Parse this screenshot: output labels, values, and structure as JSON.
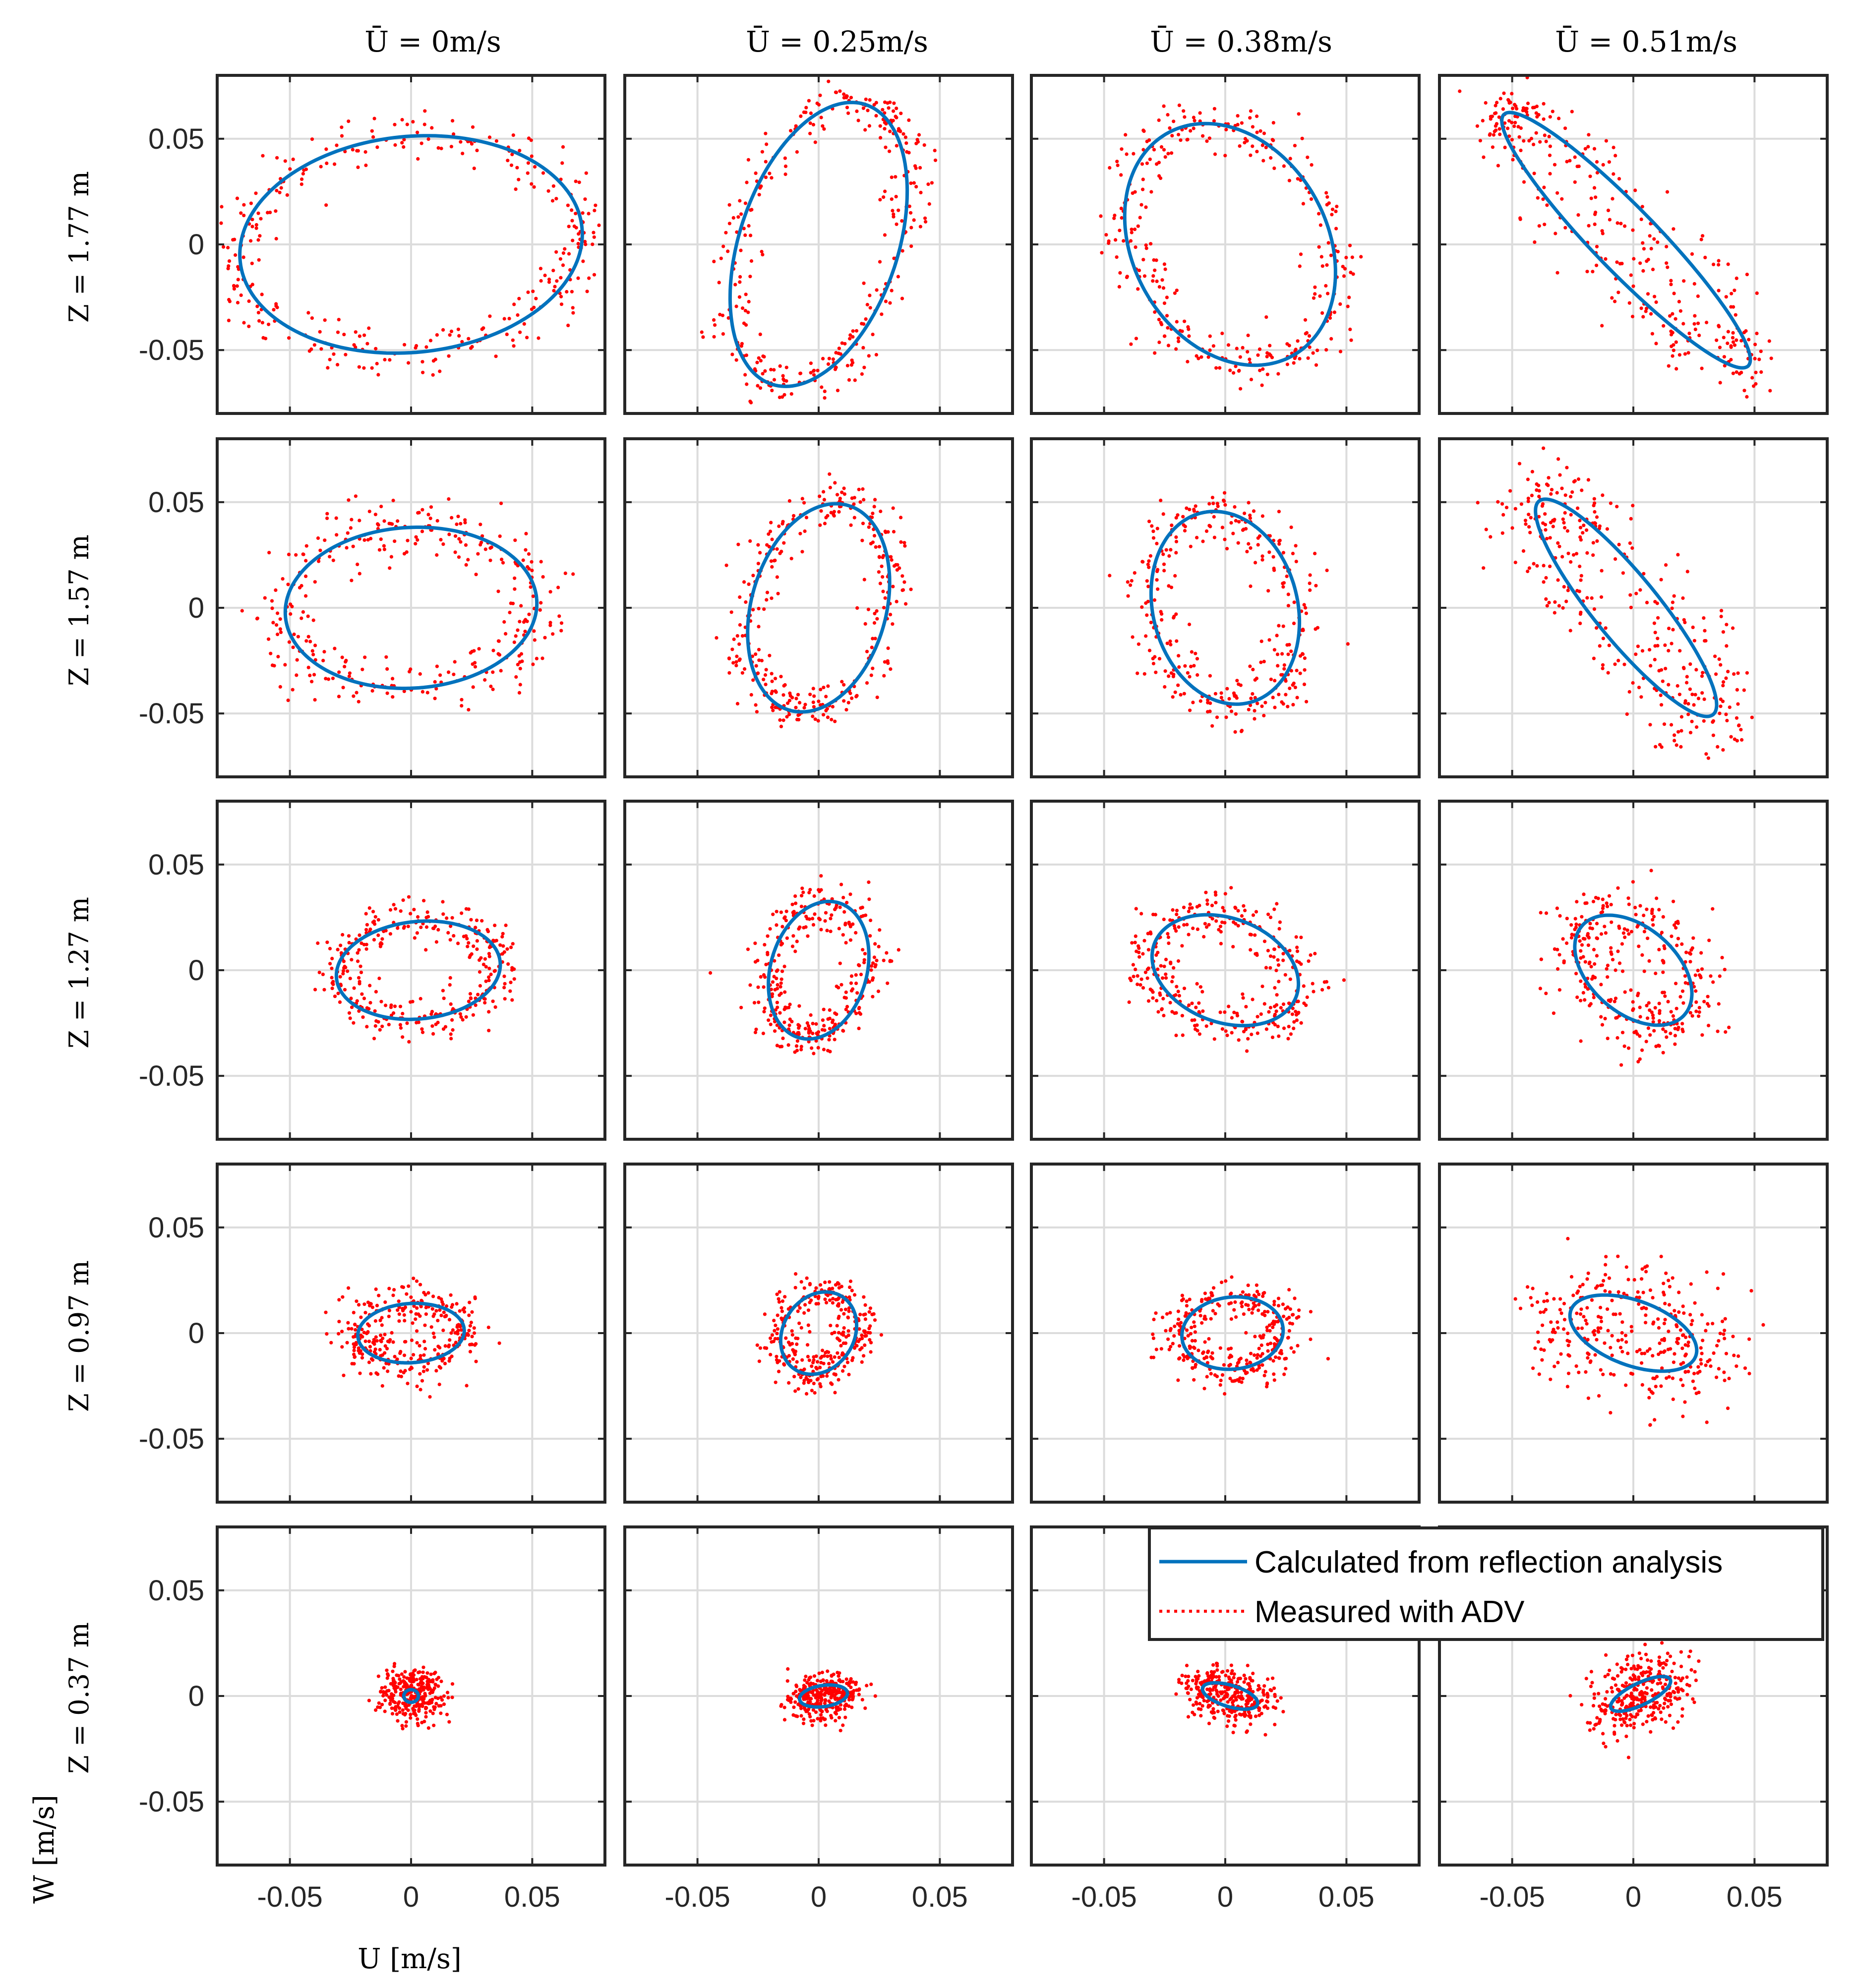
{
  "chart_data": {
    "type": "scatter",
    "title": "",
    "xlabel": "U [m/s]",
    "ylabel": "W [m/s]",
    "xlim": [
      -0.08,
      0.08
    ],
    "ylim": [
      -0.08,
      0.08
    ],
    "xticks": [
      -0.05,
      0,
      0.05
    ],
    "yticks": [
      0.05,
      0,
      -0.05
    ],
    "xtick_labels": [
      "-0.05",
      "0",
      "0.05"
    ],
    "ytick_labels": [
      "0.05",
      "0",
      "-0.05"
    ],
    "grid": true,
    "column_titles": [
      "Ū = 0m/s",
      "Ū = 0.25m/s",
      "Ū = 0.38m/s",
      "Ū = 0.51m/s"
    ],
    "row_labels": [
      "Z = 1.77 m",
      "Z = 1.57 m",
      "Z = 1.27 m",
      "Z = 0.97 m",
      "Z = 0.37 m"
    ],
    "legend": {
      "placement": "top-right of bottom-right panels",
      "entries": [
        {
          "label": "Calculated from reflection analysis",
          "style": "solid",
          "color": "#0072BD"
        },
        {
          "label": "Measured with ADV",
          "style": "dotted",
          "color": "#FF0000"
        }
      ]
    },
    "series_colors": {
      "calculated": "#0072BD",
      "measured": "#FF0000"
    },
    "panels": [
      {
        "row": 0,
        "col": 0,
        "cx": 0.0,
        "cz": 0.0,
        "a": 0.071,
        "b": 0.051,
        "tilt_deg": 8,
        "spread": 0.006
      },
      {
        "row": 0,
        "col": 1,
        "cx": 0.0,
        "cz": 0.0,
        "a": 0.069,
        "b": 0.033,
        "tilt_deg": 75,
        "spread": 0.005
      },
      {
        "row": 0,
        "col": 2,
        "cx": 0.002,
        "cz": 0.0,
        "a": 0.059,
        "b": 0.041,
        "tilt_deg": 110,
        "spread": 0.006
      },
      {
        "row": 0,
        "col": 3,
        "cx": -0.003,
        "cz": 0.002,
        "a": 0.078,
        "b": 0.014,
        "tilt_deg": 130,
        "spread": 0.007
      },
      {
        "row": 1,
        "col": 0,
        "cx": 0.0,
        "cz": 0.0,
        "a": 0.052,
        "b": 0.038,
        "tilt_deg": 5,
        "spread": 0.007
      },
      {
        "row": 1,
        "col": 1,
        "cx": 0.0,
        "cz": 0.0,
        "a": 0.05,
        "b": 0.028,
        "tilt_deg": 78,
        "spread": 0.005
      },
      {
        "row": 1,
        "col": 2,
        "cx": 0.0,
        "cz": 0.0,
        "a": 0.046,
        "b": 0.03,
        "tilt_deg": 100,
        "spread": 0.006
      },
      {
        "row": 1,
        "col": 3,
        "cx": -0.003,
        "cz": 0.0,
        "a": 0.062,
        "b": 0.014,
        "tilt_deg": 125,
        "spread": 0.01
      },
      {
        "row": 2,
        "col": 0,
        "cx": 0.003,
        "cz": 0.0,
        "a": 0.034,
        "b": 0.023,
        "tilt_deg": 8,
        "spread": 0.005
      },
      {
        "row": 2,
        "col": 1,
        "cx": 0.0,
        "cz": 0.0,
        "a": 0.033,
        "b": 0.02,
        "tilt_deg": 78,
        "spread": 0.005
      },
      {
        "row": 2,
        "col": 2,
        "cx": 0.0,
        "cz": 0.0,
        "a": 0.032,
        "b": 0.024,
        "tilt_deg": 150,
        "spread": 0.006
      },
      {
        "row": 2,
        "col": 3,
        "cx": 0.0,
        "cz": 0.0,
        "a": 0.03,
        "b": 0.019,
        "tilt_deg": 130,
        "spread": 0.008
      },
      {
        "row": 3,
        "col": 0,
        "cx": 0.0,
        "cz": 0.0,
        "a": 0.022,
        "b": 0.014,
        "tilt_deg": 5,
        "spread": 0.006
      },
      {
        "row": 3,
        "col": 1,
        "cx": 0.0,
        "cz": 0.0,
        "a": 0.02,
        "b": 0.015,
        "tilt_deg": 70,
        "spread": 0.005
      },
      {
        "row": 3,
        "col": 2,
        "cx": 0.003,
        "cz": 0.0,
        "a": 0.021,
        "b": 0.017,
        "tilt_deg": 10,
        "spread": 0.005
      },
      {
        "row": 3,
        "col": 3,
        "cx": 0.0,
        "cz": 0.0,
        "a": 0.028,
        "b": 0.015,
        "tilt_deg": 155,
        "spread": 0.012
      },
      {
        "row": 4,
        "col": 0,
        "cx": 0.0,
        "cz": 0.0,
        "a": 0.003,
        "b": 0.003,
        "tilt_deg": 0,
        "spread": 0.006
      },
      {
        "row": 4,
        "col": 1,
        "cx": 0.002,
        "cz": 0.0,
        "a": 0.01,
        "b": 0.005,
        "tilt_deg": 10,
        "spread": 0.004
      },
      {
        "row": 4,
        "col": 2,
        "cx": 0.002,
        "cz": 0.0,
        "a": 0.012,
        "b": 0.005,
        "tilt_deg": 160,
        "spread": 0.005
      },
      {
        "row": 4,
        "col": 3,
        "cx": 0.003,
        "cz": 0.001,
        "a": 0.014,
        "b": 0.005,
        "tilt_deg": 30,
        "spread": 0.007
      }
    ]
  }
}
